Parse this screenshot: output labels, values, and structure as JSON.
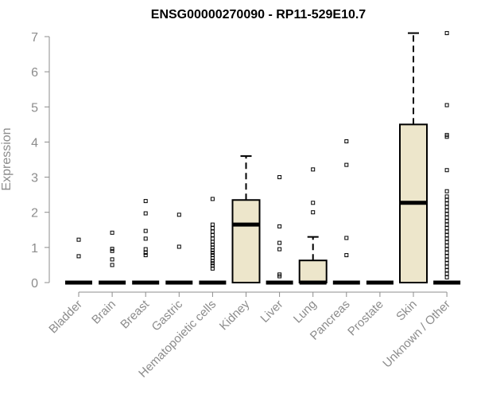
{
  "colors": {
    "box_fill": "#ede6cb",
    "box_stroke": "#000000",
    "axis": "#8c8c8c",
    "median": "#000000"
  },
  "chart_data": {
    "type": "boxplot",
    "title": "ENSG00000270090 - RP11-529E10.7",
    "ylabel": "Expression",
    "xlabel": "",
    "ylim": [
      0,
      7
    ],
    "yticks": [
      0,
      1,
      2,
      3,
      4,
      5,
      6,
      7
    ],
    "grid": false,
    "categories": [
      "Bladder",
      "Brain",
      "Breast",
      "Gastric",
      "Hematopoietic cells",
      "Kidney",
      "Liver",
      "Lung",
      "Pancreas",
      "Prostate",
      "Skin",
      "Unknown / Other"
    ],
    "boxes": [
      {
        "q1": 0,
        "median": 0,
        "q3": 0,
        "whisker_low": 0,
        "whisker_high": 0,
        "outliers": [
          0.75,
          1.22
        ]
      },
      {
        "q1": 0,
        "median": 0,
        "q3": 0,
        "whisker_low": 0,
        "whisker_high": 0,
        "outliers": [
          0.5,
          0.66,
          0.9,
          0.96,
          1.42
        ]
      },
      {
        "q1": 0,
        "median": 0,
        "q3": 0,
        "whisker_low": 0,
        "whisker_high": 0,
        "outliers": [
          0.78,
          0.85,
          0.95,
          1.25,
          1.47,
          1.97,
          2.32
        ]
      },
      {
        "q1": 0,
        "median": 0,
        "q3": 0,
        "whisker_low": 0,
        "whisker_high": 0,
        "outliers": [
          1.02,
          1.93
        ]
      },
      {
        "q1": 0,
        "median": 0,
        "q3": 0,
        "whisker_low": 0,
        "whisker_high": 0,
        "outliers": [
          0.4,
          0.48,
          0.55,
          0.62,
          0.7,
          0.78,
          0.85,
          0.92,
          1.0,
          1.08,
          1.16,
          1.25,
          1.35,
          1.45,
          1.55,
          1.65,
          2.38
        ]
      },
      {
        "q1": 0,
        "median": 1.65,
        "q3": 2.35,
        "whisker_low": 0,
        "whisker_high": 3.6,
        "outliers": []
      },
      {
        "q1": 0,
        "median": 0,
        "q3": 0,
        "whisker_low": 0,
        "whisker_high": 0,
        "outliers": [
          0.18,
          0.23,
          0.95,
          1.13,
          1.6,
          3.0
        ]
      },
      {
        "q1": 0,
        "median": 0,
        "q3": 0.63,
        "whisker_low": 0,
        "whisker_high": 1.3,
        "outliers": [
          2.0,
          2.27,
          3.22
        ]
      },
      {
        "q1": 0,
        "median": 0,
        "q3": 0,
        "whisker_low": 0,
        "whisker_high": 0,
        "outliers": [
          0.78,
          1.27,
          3.35,
          4.02
        ]
      },
      {
        "q1": 0,
        "median": 0,
        "q3": 0,
        "whisker_low": 0,
        "whisker_high": 0,
        "outliers": []
      },
      {
        "q1": 0,
        "median": 2.27,
        "q3": 4.5,
        "whisker_low": 0,
        "whisker_high": 7.1,
        "outliers": []
      },
      {
        "q1": 0,
        "median": 0,
        "q3": 0,
        "whisker_low": 0,
        "whisker_high": 0,
        "outliers": [
          0.15,
          0.25,
          0.35,
          0.45,
          0.55,
          0.65,
          0.75,
          0.85,
          0.95,
          1.05,
          1.15,
          1.25,
          1.35,
          1.45,
          1.55,
          1.65,
          1.75,
          1.85,
          1.95,
          2.05,
          2.15,
          2.25,
          2.35,
          2.45,
          2.6,
          3.2,
          4.15,
          4.2,
          5.05,
          7.1
        ]
      }
    ]
  }
}
